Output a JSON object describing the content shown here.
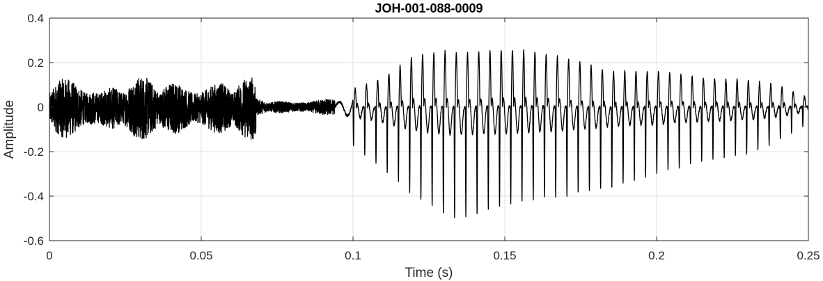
{
  "chart_data": {
    "type": "line",
    "title": "JOH-001-088-0009",
    "xlabel": "Time (s)",
    "ylabel": "Amplitude",
    "xlim": [
      0,
      0.25
    ],
    "ylim": [
      -0.6,
      0.4
    ],
    "xticks": [
      0,
      0.05,
      0.1,
      0.15,
      0.2,
      0.25
    ],
    "xtick_labels": [
      "0",
      "0.05",
      "0.1",
      "0.15",
      "0.2",
      "0.25"
    ],
    "yticks": [
      -0.6,
      -0.4,
      -0.2,
      0,
      0.2,
      0.4
    ],
    "ytick_labels": [
      "-0.6",
      "-0.4",
      "-0.2",
      "0",
      "0.2",
      "0.4"
    ],
    "grid": true,
    "line_color": "#000000",
    "series": [
      {
        "segments": [
          {
            "t_start": 0.0,
            "t_end": 0.068,
            "kind": "noise",
            "amplitude_min": -0.15,
            "amplitude_max": 0.14
          },
          {
            "t_start": 0.068,
            "t_end": 0.094,
            "kind": "noise",
            "amplitude_min": -0.04,
            "amplitude_max": 0.04
          },
          {
            "t_start": 0.094,
            "t_end": 0.1,
            "kind": "transition",
            "amplitude_min": -0.07,
            "amplitude_max": 0.05
          },
          {
            "t_start": 0.1,
            "t_end": 0.25,
            "kind": "voiced",
            "pitch_period": 0.0037,
            "envelope": [
              {
                "t": 0.1,
                "max": 0.08,
                "min": -0.17
              },
              {
                "t": 0.11,
                "max": 0.13,
                "min": -0.28
              },
              {
                "t": 0.12,
                "max": 0.23,
                "min": -0.4
              },
              {
                "t": 0.13,
                "max": 0.25,
                "min": -0.48
              },
              {
                "t": 0.135,
                "max": 0.24,
                "min": -0.5
              },
              {
                "t": 0.145,
                "max": 0.25,
                "min": -0.46
              },
              {
                "t": 0.155,
                "max": 0.26,
                "min": -0.42
              },
              {
                "t": 0.17,
                "max": 0.22,
                "min": -0.4
              },
              {
                "t": 0.185,
                "max": 0.16,
                "min": -0.36
              },
              {
                "t": 0.2,
                "max": 0.16,
                "min": -0.3
              },
              {
                "t": 0.215,
                "max": 0.13,
                "min": -0.24
              },
              {
                "t": 0.23,
                "max": 0.12,
                "min": -0.21
              },
              {
                "t": 0.24,
                "max": 0.1,
                "min": -0.15
              },
              {
                "t": 0.25,
                "max": 0.04,
                "min": -0.07
              }
            ]
          }
        ]
      }
    ]
  }
}
